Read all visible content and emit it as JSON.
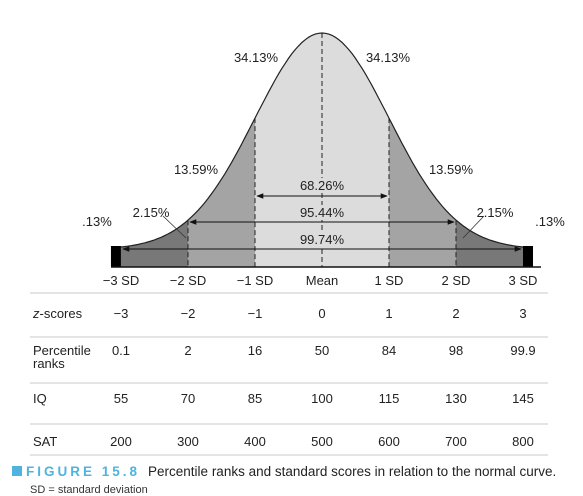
{
  "curve": {
    "region_labels": {
      "center_left": "34.13%",
      "center_right": "34.13%",
      "mid_left": "13.59%",
      "mid_right": "13.59%",
      "outer_left": "2.15%",
      "outer_right": "2.15%",
      "tail_left": ".13%",
      "tail_right": ".13%"
    },
    "spans": [
      "68.26%",
      "95.44%",
      "99.74%"
    ],
    "sd_labels": [
      "−3 SD",
      "−2 SD",
      "−1 SD",
      "Mean",
      "1 SD",
      "2 SD",
      "3 SD"
    ],
    "colors": {
      "center": "#dcdcdc",
      "mid": "#a4a4a4",
      "outer": "#787878",
      "tail": "#000000"
    }
  },
  "table": {
    "rows": [
      {
        "label": "z-scores",
        "values": [
          "−3",
          "−2",
          "−1",
          "0",
          "1",
          "2",
          "3"
        ]
      },
      {
        "label": "Percentile ranks",
        "values": [
          "0.1",
          "2",
          "16",
          "50",
          "84",
          "98",
          "99.9"
        ]
      },
      {
        "label": "IQ",
        "values": [
          "55",
          "70",
          "85",
          "100",
          "115",
          "130",
          "145"
        ]
      },
      {
        "label": "SAT",
        "values": [
          "200",
          "300",
          "400",
          "500",
          "600",
          "700",
          "800"
        ]
      }
    ]
  },
  "caption": {
    "label": "FIGURE 15.8",
    "text": "Percentile ranks and standard scores in relation to the normal curve."
  },
  "note": "SD = standard deviation"
}
